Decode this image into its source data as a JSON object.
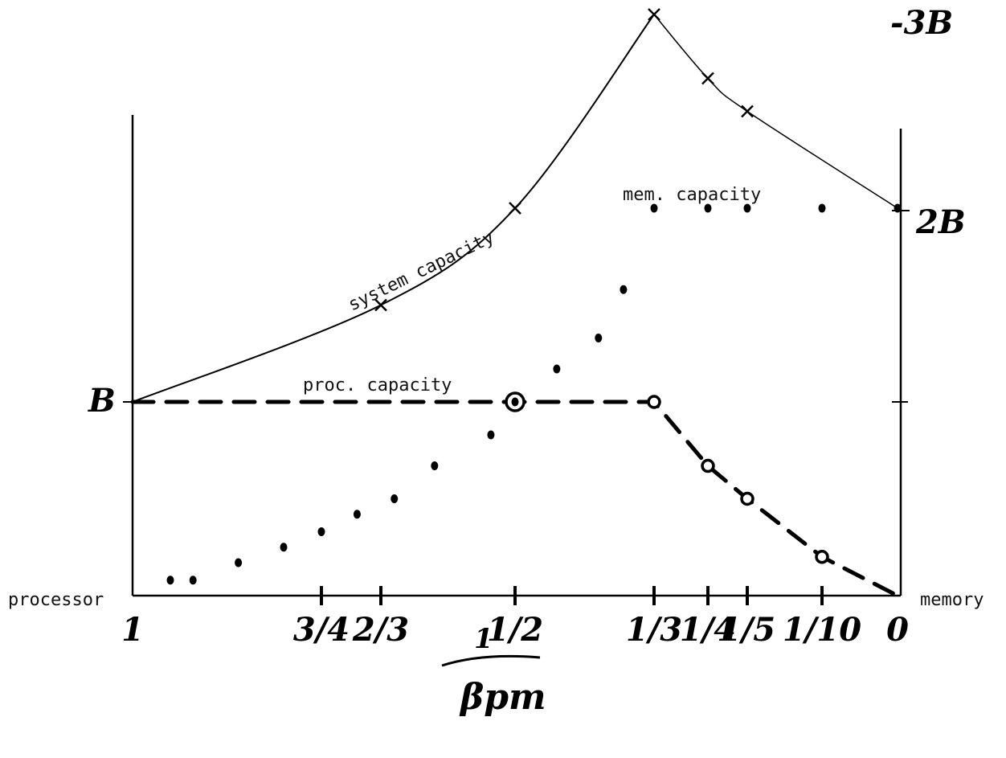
{
  "chart_data": {
    "type": "line",
    "title": "",
    "x_axis": {
      "reversed": true,
      "ticks": [
        {
          "label": "1",
          "value": 1.0
        },
        {
          "label": "3/4",
          "value": 0.75
        },
        {
          "label": "2/3",
          "value": 0.6667
        },
        {
          "label": "1/2",
          "value": 0.5
        },
        {
          "label": "1/3",
          "value": 0.3333
        },
        {
          "label": "1/4",
          "value": 0.25
        },
        {
          "label": "1/5",
          "value": 0.2
        },
        {
          "label": "1/10",
          "value": 0.1
        },
        {
          "label": "0",
          "value": 0.0
        }
      ],
      "label_numerator": "1",
      "label_denominator": "βpm",
      "left_end_label": "processor",
      "right_end_label": "memory"
    },
    "y_axis": {
      "unit": "B",
      "ticks": [
        {
          "label": "B",
          "value": 1,
          "side": "left"
        },
        {
          "label": "2B",
          "value": 2,
          "side": "right"
        },
        {
          "label": "-3B",
          "value": 3,
          "side": "right"
        }
      ],
      "ylim": [
        0,
        3
      ]
    },
    "series": [
      {
        "name": "system capacity",
        "style": "solid",
        "x": [
          1.0,
          0.6667,
          0.5,
          0.3333,
          0.25,
          0.2,
          0.0
        ],
        "y": [
          1.0,
          1.5,
          2.0,
          3.0,
          2.67,
          2.5,
          2.0
        ]
      },
      {
        "name": "proc. capacity",
        "style": "dashed",
        "x": [
          1.0,
          0.5,
          0.3333,
          0.25,
          0.2,
          0.1,
          0.0
        ],
        "y": [
          1.0,
          1.0,
          1.0,
          0.67,
          0.5,
          0.2,
          0.0
        ]
      },
      {
        "name": "mem. capacity",
        "style": "dotted",
        "x": [
          0.95,
          0.92,
          0.86,
          0.8,
          0.75,
          0.7,
          0.65,
          0.6,
          0.53,
          0.5,
          0.45,
          0.4,
          0.37,
          0.3333,
          0.25,
          0.2,
          0.1,
          0.0
        ],
        "y": [
          0.08,
          0.08,
          0.17,
          0.25,
          0.33,
          0.42,
          0.5,
          0.67,
          0.83,
          1.0,
          1.17,
          1.33,
          1.58,
          2.0,
          2.0,
          2.0,
          2.0,
          2.0
        ]
      }
    ],
    "series_labels": [
      "system capacity",
      "proc. capacity",
      "mem. capacity"
    ],
    "grid": false,
    "legend": "none"
  }
}
